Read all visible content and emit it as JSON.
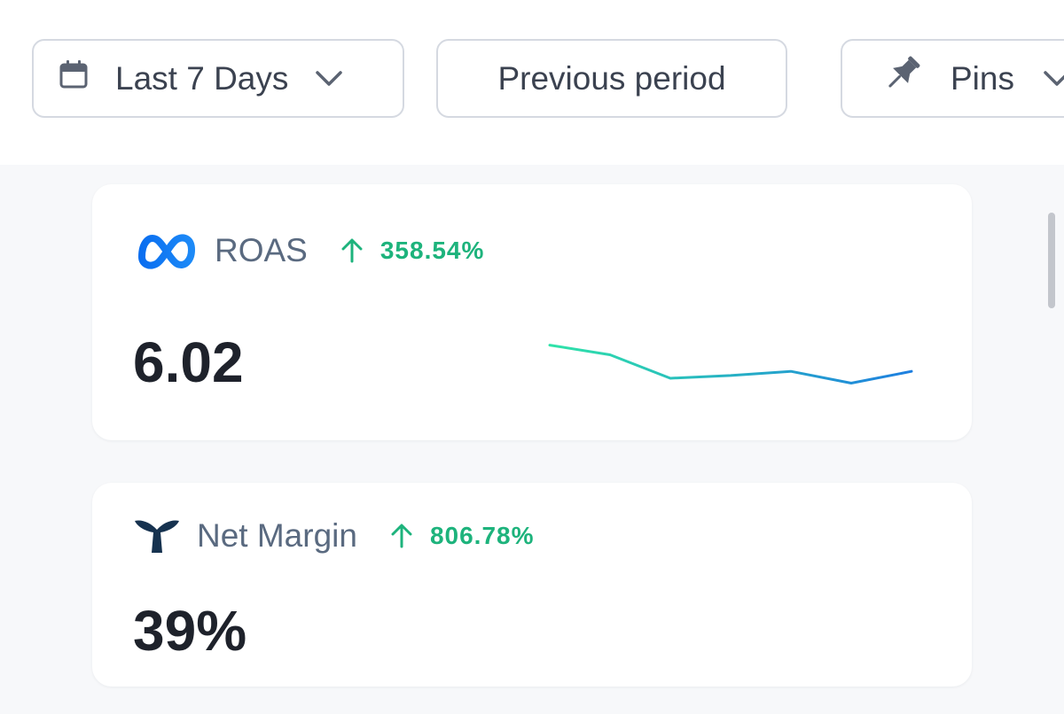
{
  "toolbar": {
    "date_range": {
      "label": "Last 7 Days",
      "icon": "calendar-icon"
    },
    "compare": {
      "label": "Previous period"
    },
    "pins": {
      "label": "Pins",
      "icon": "pin-icon"
    }
  },
  "colors": {
    "positive": "#1db37c",
    "sparkline_start": "#2fe3a8",
    "sparkline_end": "#1e7fe0",
    "meta_blue": "#1877f2",
    "whale_navy": "#16324f"
  },
  "metrics": [
    {
      "name": "ROAS",
      "source_icon": "meta-logo-icon",
      "change": "358.54%",
      "direction": "up",
      "value": "6.02",
      "sparkline": [
        0.8,
        0.66,
        0.32,
        0.36,
        0.42,
        0.25,
        0.42
      ]
    },
    {
      "name": "Net Margin",
      "source_icon": "whale-tail-icon",
      "change": "806.78%",
      "direction": "up",
      "value": "39%"
    }
  ]
}
